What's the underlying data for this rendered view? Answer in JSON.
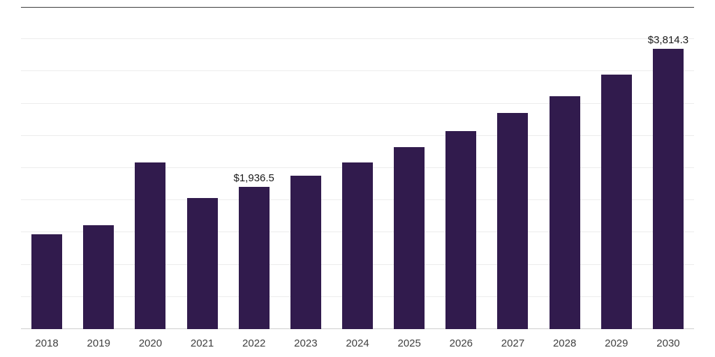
{
  "chart_data": {
    "type": "bar",
    "title": "",
    "xlabel": "",
    "ylabel": "",
    "categories": [
      "2018",
      "2019",
      "2020",
      "2021",
      "2022",
      "2023",
      "2024",
      "2025",
      "2026",
      "2027",
      "2028",
      "2029",
      "2030"
    ],
    "values": [
      1290,
      1410,
      2270,
      1780,
      1936.5,
      2085,
      2265,
      2470,
      2690,
      2935,
      3170,
      3465,
      3814.3
    ],
    "labeled_points": [
      {
        "category": "2022",
        "label": "$1,936.5"
      },
      {
        "category": "2030",
        "label": "$3,814.3"
      }
    ],
    "ylim": [
      0,
      4380
    ],
    "grid": "horizontal",
    "gridline_count": 9,
    "legend": "none",
    "colors": {
      "bar": "#311b4d",
      "gridline": "#ececec",
      "axis_line": "#cfcfcf",
      "top_border": "#3d3d3d",
      "tick_label": "#404040",
      "value_label": "#1a1a1a"
    }
  }
}
